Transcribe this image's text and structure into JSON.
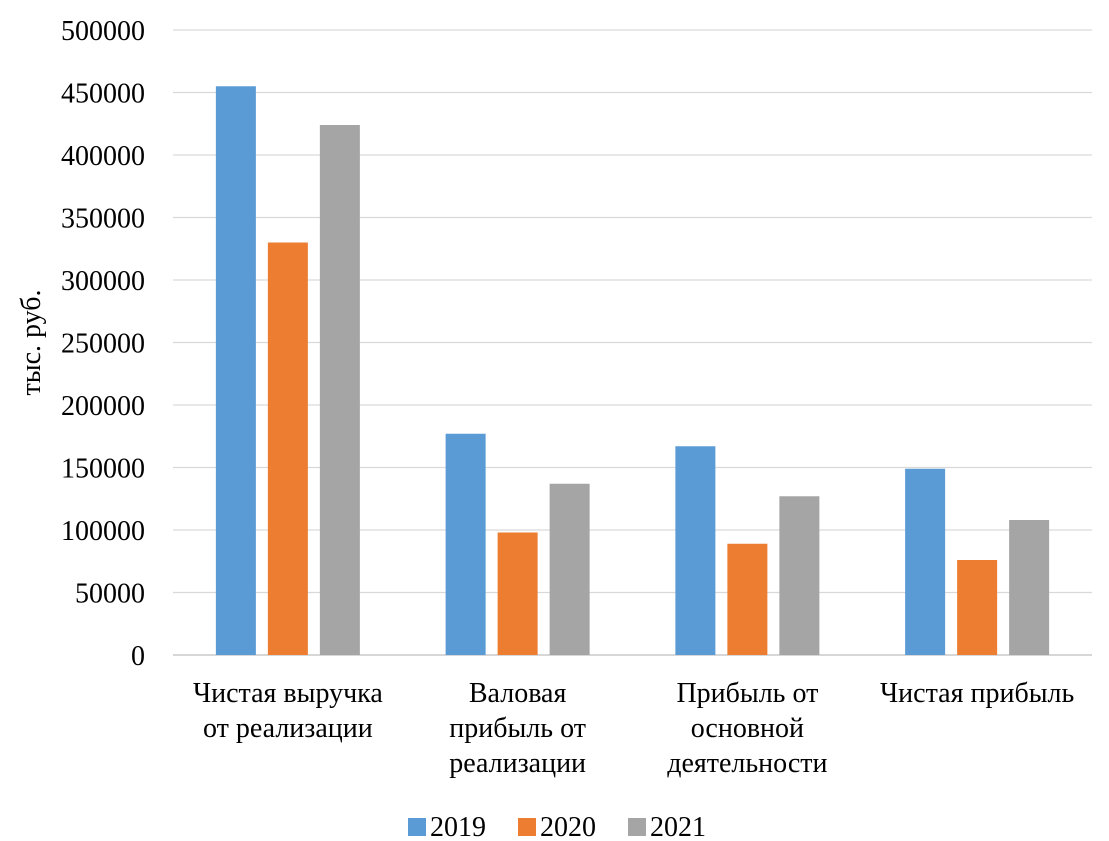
{
  "chart_data": {
    "type": "bar",
    "title": "",
    "ylabel": "тыс. руб.",
    "xlabel": "",
    "ylim": [
      0,
      500000
    ],
    "yticks": [
      0,
      50000,
      100000,
      150000,
      200000,
      250000,
      300000,
      350000,
      400000,
      450000,
      500000
    ],
    "grid": true,
    "legend_position": "bottom",
    "categories": [
      [
        "Чистая выручка",
        "от реализации"
      ],
      [
        "Валовая",
        "прибыль от",
        "реализации"
      ],
      [
        "Прибыль от",
        "основной",
        "деятельности"
      ],
      [
        "Чистая прибыль"
      ]
    ],
    "series": [
      {
        "name": "2019",
        "color": "#5B9BD5",
        "values": [
          455000,
          177000,
          167000,
          149000
        ]
      },
      {
        "name": "2020",
        "color": "#ED7D31",
        "values": [
          330000,
          98000,
          89000,
          76000
        ]
      },
      {
        "name": "2021",
        "color": "#A5A5A5",
        "values": [
          424000,
          137000,
          127000,
          108000
        ]
      }
    ]
  }
}
